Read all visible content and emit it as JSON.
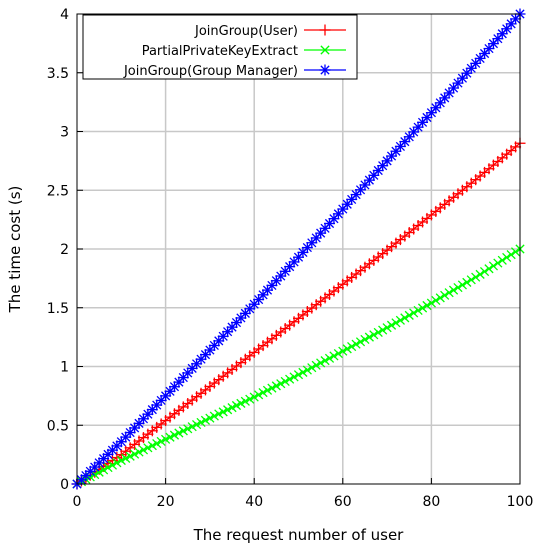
{
  "chart_data": {
    "type": "line",
    "xlabel": "The request number of user",
    "ylabel": "The time cost (s)",
    "xlim": [
      0,
      100
    ],
    "ylim": [
      0,
      4
    ],
    "xticks": [
      0,
      20,
      40,
      60,
      80,
      100
    ],
    "yticks": [
      0,
      0.5,
      1,
      1.5,
      2,
      2.5,
      3,
      3.5,
      4
    ],
    "grid": true,
    "legend_position": "top-left",
    "series": [
      {
        "name": "JoinGroup(User)",
        "color": "#ff0000",
        "marker": "plus",
        "x": [
          0,
          10,
          20,
          30,
          40,
          50,
          60,
          70,
          80,
          90,
          100
        ],
        "values": [
          0,
          0.25,
          0.54,
          0.83,
          1.12,
          1.41,
          1.7,
          1.99,
          2.29,
          2.59,
          2.9
        ]
      },
      {
        "name": "PartialPrivateKeyExtract",
        "color": "#00ff00",
        "marker": "cross",
        "x": [
          0,
          10,
          20,
          30,
          40,
          50,
          60,
          70,
          80,
          90,
          100
        ],
        "values": [
          0,
          0.2,
          0.38,
          0.56,
          0.74,
          0.93,
          1.13,
          1.33,
          1.54,
          1.76,
          2.0
        ]
      },
      {
        "name": "JoinGroup(Group Manager)",
        "color": "#0000ff",
        "marker": "star",
        "x": [
          0,
          10,
          20,
          30,
          40,
          50,
          60,
          70,
          80,
          90,
          100
        ],
        "values": [
          0,
          0.36,
          0.75,
          1.14,
          1.53,
          1.93,
          2.34,
          2.75,
          3.16,
          3.58,
          4.0
        ]
      }
    ]
  }
}
